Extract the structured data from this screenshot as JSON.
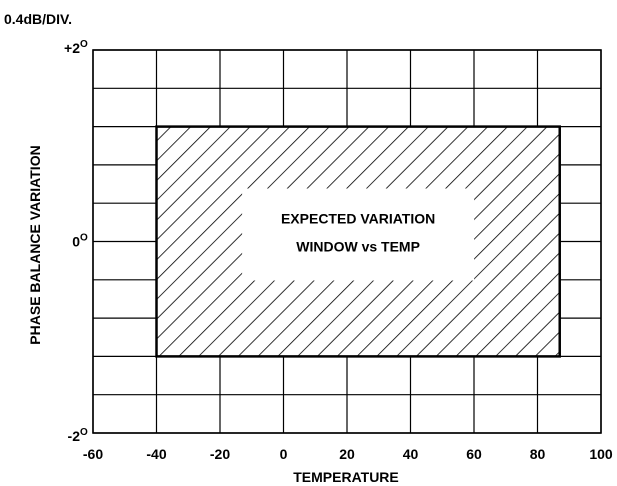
{
  "chart_data": {
    "type": "area",
    "scale_note": "0.4dB/DIV.",
    "xlabel": "TEMPERATURE",
    "ylabel": "PHASE BALANCE VARIATION",
    "xlim": [
      -60,
      100
    ],
    "ylim": [
      -2,
      2
    ],
    "x_ticks": [
      -60,
      -40,
      -20,
      0,
      20,
      40,
      60,
      80,
      100
    ],
    "x_tick_labels": [
      "-60",
      "-40",
      "-20",
      "0",
      "20",
      "40",
      "60",
      "80",
      "100"
    ],
    "y_ticks": [
      {
        "value": 2,
        "label": "+2",
        "sup": "O"
      },
      {
        "value": 0,
        "label": "0",
        "sup": "O"
      },
      {
        "value": -2,
        "label": "-2",
        "sup": "O"
      }
    ],
    "grid": true,
    "grid_x_step": 20,
    "grid_y_divisions": 10,
    "window": {
      "x": [
        -40,
        87
      ],
      "y": [
        -1.2,
        1.2
      ],
      "fill": "hatched",
      "label_lines": [
        "EXPECTED VARIATION",
        "WINDOW vs TEMP"
      ]
    }
  }
}
